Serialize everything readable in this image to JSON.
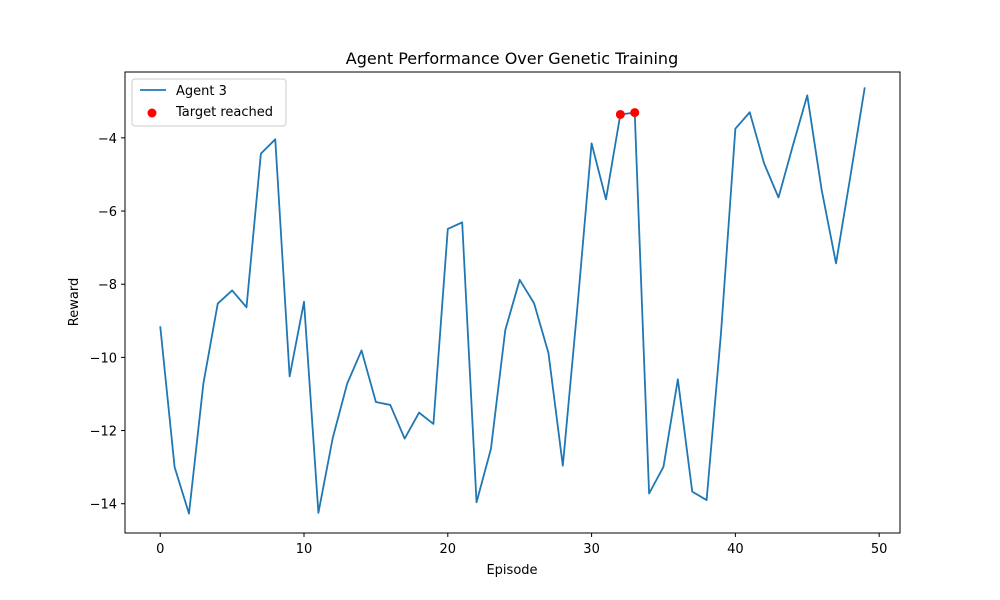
{
  "chart_data": {
    "type": "line",
    "title": "Agent Performance Over Genetic Training",
    "xlabel": "Episode",
    "ylabel": "Reward",
    "xlim": [
      -2.45,
      51.45
    ],
    "ylim": [
      -14.8,
      -2.2
    ],
    "xticks": [
      0,
      10,
      20,
      30,
      40,
      50
    ],
    "yticks": [
      -14,
      -12,
      -10,
      -8,
      -6,
      -4
    ],
    "grid": false,
    "legend_position": "upper-left",
    "series": [
      {
        "name": "Agent 3",
        "type": "line",
        "color": "#1f77b4",
        "x": [
          0,
          1,
          2,
          3,
          4,
          5,
          6,
          7,
          8,
          9,
          10,
          11,
          12,
          13,
          14,
          15,
          16,
          17,
          18,
          19,
          20,
          21,
          22,
          23,
          24,
          25,
          26,
          27,
          28,
          29,
          30,
          31,
          32,
          33,
          34,
          35,
          36,
          37,
          38,
          39,
          40,
          41,
          42,
          43,
          44,
          45,
          46,
          47,
          48,
          49
        ],
        "y": [
          -9.15,
          -13.0,
          -14.27,
          -10.72,
          -8.53,
          -8.17,
          -8.63,
          -4.43,
          -4.04,
          -10.52,
          -8.48,
          -14.25,
          -12.2,
          -10.72,
          -9.81,
          -11.22,
          -11.3,
          -12.22,
          -11.51,
          -11.82,
          -6.49,
          -6.31,
          -13.96,
          -12.5,
          -9.25,
          -7.88,
          -8.52,
          -9.88,
          -12.96,
          -8.69,
          -4.15,
          -5.68,
          -3.36,
          -3.31,
          -13.72,
          -12.99,
          -10.6,
          -13.67,
          -13.9,
          -9.34,
          -3.75,
          -3.3,
          -4.7,
          -5.63,
          -4.21,
          -2.84,
          -5.42,
          -7.43,
          -5.05,
          -2.62
        ]
      },
      {
        "name": "Target reached",
        "type": "scatter",
        "color": "#ff0000",
        "x": [
          32,
          33
        ],
        "y": [
          -3.36,
          -3.31
        ]
      }
    ]
  }
}
